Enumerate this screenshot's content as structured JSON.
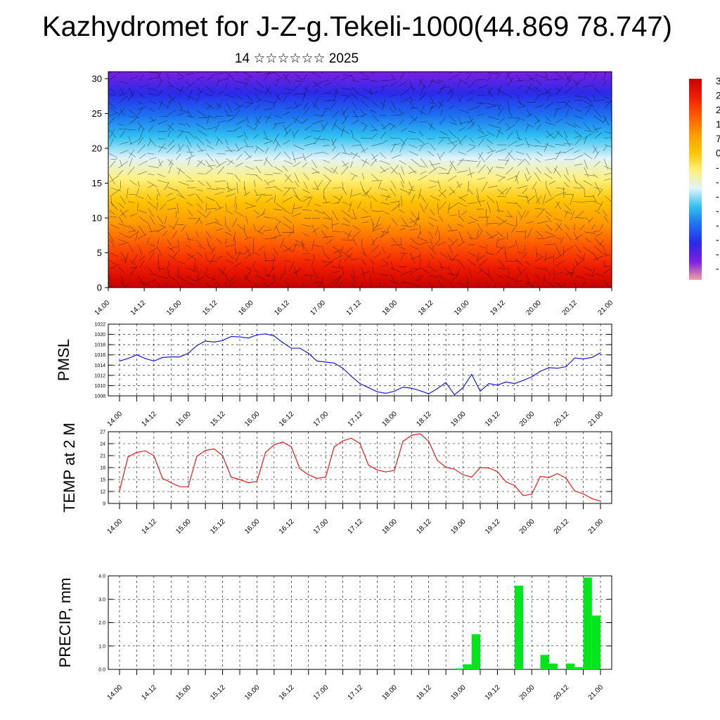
{
  "title": "Kazhydromet for J-Z-g.Tekeli-1000(44.869 78.747)",
  "subtitle": "14 ☆☆☆☆☆☆ 2025",
  "colorbar_labels": [
    "3",
    "2",
    "2",
    "1",
    "7",
    "0",
    "-",
    "-",
    "-",
    "-",
    "-",
    "-",
    "-",
    "-"
  ],
  "chart_data": [
    {
      "type": "heatmap",
      "description_key": "wind-and-temperature cross section",
      "xlabel": "",
      "ylabel": "",
      "x_ticks": [
        "14.00",
        "14.12",
        "15.00",
        "15.12",
        "16.00",
        "16.12",
        "17.00",
        "17.12",
        "18.00",
        "18.12",
        "19.00",
        "19.12",
        "20.00",
        "20.12",
        "21.00"
      ],
      "y_ticks": [
        0,
        5,
        10,
        15,
        20,
        25,
        30
      ],
      "ylim": [
        0,
        31
      ],
      "colormap": [
        "#7b1fe0",
        "#2a2ae8",
        "#1d6ff0",
        "#30c0f0",
        "#e0f4fa",
        "#fff07a",
        "#ffc400",
        "#ff9a00",
        "#ff5a00",
        "#f01e00",
        "#c80000"
      ],
      "grid": false
    },
    {
      "type": "line",
      "xlabel": "",
      "ylabel": "PMSL",
      "x_ticks": [
        "14.00",
        "14.12",
        "15.00",
        "15.12",
        "16.00",
        "16.12",
        "17.00",
        "17.12",
        "18.00",
        "18.12",
        "19.00",
        "19.12",
        "20.00",
        "20.12",
        "21.00"
      ],
      "y_ticks": [
        1008,
        1010,
        1012,
        1014,
        1016,
        1018,
        1020,
        1022
      ],
      "ylim": [
        1008,
        1022
      ],
      "color": "#1a1ae6",
      "x": [
        0,
        3,
        6,
        9,
        12,
        15,
        18,
        21,
        24,
        27,
        30,
        33,
        36,
        39,
        42,
        45,
        48,
        51,
        54,
        57,
        60,
        63,
        66,
        69,
        72,
        75,
        78,
        81,
        84,
        87,
        90,
        93,
        96,
        99,
        102,
        105,
        108,
        111,
        114,
        117,
        120,
        123,
        126,
        129,
        132,
        135,
        138,
        141,
        144,
        147,
        150,
        153,
        156,
        159,
        162,
        165,
        168
      ],
      "values": [
        1014.8,
        1015.3,
        1016.0,
        1015.3,
        1014.8,
        1015.5,
        1015.6,
        1015.6,
        1016.3,
        1017.8,
        1018.7,
        1018.5,
        1018.8,
        1019.6,
        1019.5,
        1019.3,
        1019.9,
        1020.1,
        1019.7,
        1018.4,
        1017.3,
        1017.3,
        1016.3,
        1014.8,
        1014.6,
        1014.4,
        1013.4,
        1011.8,
        1010.4,
        1009.6,
        1008.8,
        1008.5,
        1008.9,
        1009.7,
        1009.5,
        1009.0,
        1008.4,
        1009.4,
        1010.6,
        1008.2,
        1009.6,
        1012.2,
        1008.9,
        1010.4,
        1010.1,
        1010.7,
        1010.4,
        1011.0,
        1011.7,
        1012.8,
        1013.5,
        1013.4,
        1013.7,
        1015.4,
        1015.2,
        1015.5,
        1016.4
      ],
      "grid": true
    },
    {
      "type": "line",
      "xlabel": "",
      "ylabel": "TEMP at 2 M",
      "x_ticks": [
        "14.00",
        "14.12",
        "15.00",
        "15.12",
        "16.00",
        "16.12",
        "17.00",
        "17.12",
        "18.00",
        "18.12",
        "19.00",
        "19.12",
        "20.00",
        "20.12",
        "21.00"
      ],
      "y_ticks": [
        9,
        12,
        15,
        18,
        21,
        24,
        27
      ],
      "ylim": [
        9,
        27
      ],
      "color": "#e61a1a",
      "x": [
        0,
        3,
        6,
        9,
        12,
        15,
        18,
        21,
        24,
        27,
        30,
        33,
        36,
        39,
        42,
        45,
        48,
        51,
        54,
        57,
        60,
        63,
        66,
        69,
        72,
        75,
        78,
        81,
        84,
        87,
        90,
        93,
        96,
        99,
        102,
        105,
        108,
        111,
        114,
        117,
        120,
        123,
        126,
        129,
        132,
        135,
        138,
        141,
        144,
        147,
        150,
        153,
        156,
        159,
        162,
        165,
        168
      ],
      "values": [
        12.2,
        20.7,
        21.8,
        22.2,
        21.0,
        15.3,
        14.2,
        13.2,
        13.2,
        20.8,
        22.3,
        22.7,
        21.0,
        15.6,
        15.0,
        14.2,
        14.5,
        21.8,
        23.7,
        24.4,
        23.2,
        17.7,
        16.2,
        15.3,
        15.6,
        23.2,
        24.7,
        25.4,
        24.0,
        18.6,
        17.4,
        16.9,
        17.3,
        24.6,
        26.1,
        26.5,
        24.6,
        19.8,
        18.1,
        17.6,
        16.2,
        15.6,
        18.0,
        17.9,
        17.0,
        14.4,
        13.5,
        11.0,
        11.3,
        15.8,
        15.5,
        16.5,
        15.3,
        12.1,
        11.4,
        10.2,
        9.6
      ],
      "grid": true
    },
    {
      "type": "bar",
      "xlabel": "",
      "ylabel": "PRECIP, mm",
      "x_ticks": [
        "14.00",
        "14.12",
        "15.00",
        "15.12",
        "16.00",
        "16.12",
        "17.00",
        "17.12",
        "18.00",
        "18.12",
        "19.00",
        "19.12",
        "20.00",
        "20.12",
        "21.00"
      ],
      "y_ticks": [
        "0.0",
        "1.0",
        "2.0",
        "3.0",
        "4.0"
      ],
      "ylim": [
        0,
        4
      ],
      "color": "#00e61a",
      "x": [
        120,
        123,
        126,
        141,
        150,
        153,
        159,
        162,
        165,
        168
      ],
      "values": [
        0.04,
        0.22,
        1.5,
        3.58,
        0.62,
        0.25,
        0.25,
        0.1,
        3.93,
        2.3
      ],
      "grid": true
    }
  ]
}
